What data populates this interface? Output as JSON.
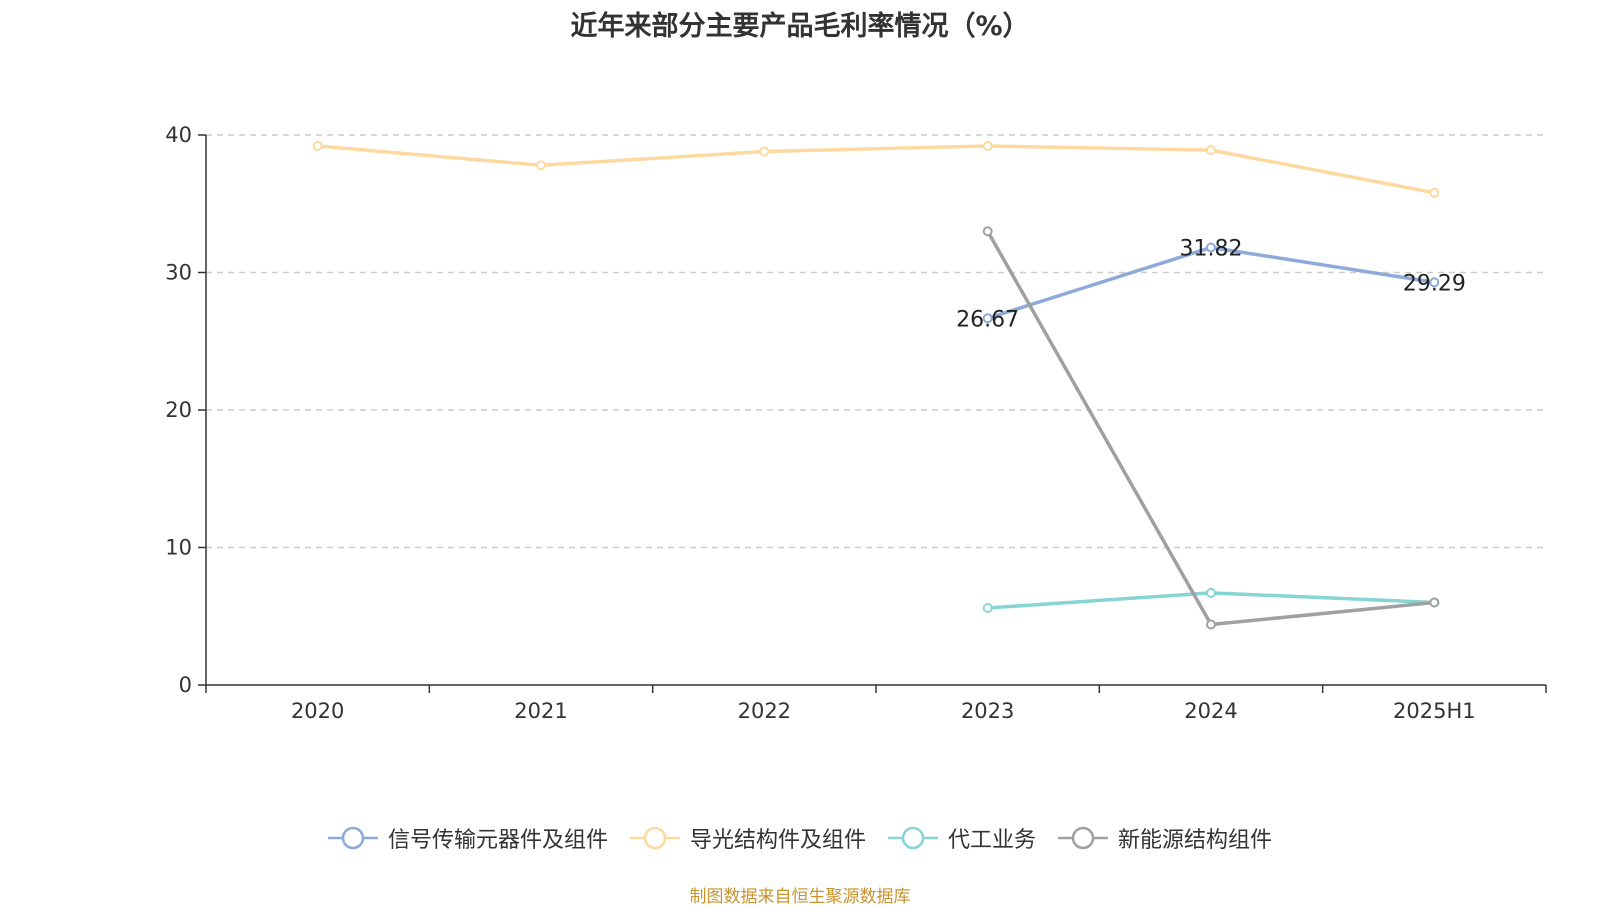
{
  "title": "近年来部分主要产品毛利率情况（%）",
  "source_note": "制图数据来自恒生聚源数据库",
  "chart_data": {
    "type": "line",
    "title": "近年来部分主要产品毛利率情况（%）",
    "xlabel": "",
    "ylabel": "",
    "categories": [
      "2020",
      "2021",
      "2022",
      "2023",
      "2024",
      "2025H1"
    ],
    "ylim": [
      0,
      40
    ],
    "yticks": [
      0,
      10,
      20,
      30,
      40
    ],
    "grid": "horizontal dashed",
    "legend_position": "bottom",
    "series": [
      {
        "name": "信号传输元器件及组件",
        "color": "#8eaadb",
        "values": [
          null,
          null,
          null,
          26.67,
          31.82,
          29.29
        ],
        "labels": [
          null,
          null,
          null,
          "26.67",
          "31.82",
          "29.29"
        ]
      },
      {
        "name": "导光结构件及组件",
        "color": "#fdd9a0",
        "values": [
          39.2,
          37.8,
          38.8,
          39.2,
          38.9,
          35.8
        ],
        "labels": [
          null,
          null,
          null,
          null,
          null,
          null
        ]
      },
      {
        "name": "代工业务",
        "color": "#86d4d4",
        "values": [
          null,
          null,
          null,
          5.6,
          6.7,
          6.0
        ],
        "labels": [
          null,
          null,
          null,
          null,
          null,
          null
        ]
      },
      {
        "name": "新能源结构组件",
        "color": "#a0a0a0",
        "values": [
          null,
          null,
          null,
          33.0,
          4.4,
          6.0
        ],
        "labels": [
          null,
          null,
          null,
          null,
          null,
          null
        ]
      }
    ]
  }
}
